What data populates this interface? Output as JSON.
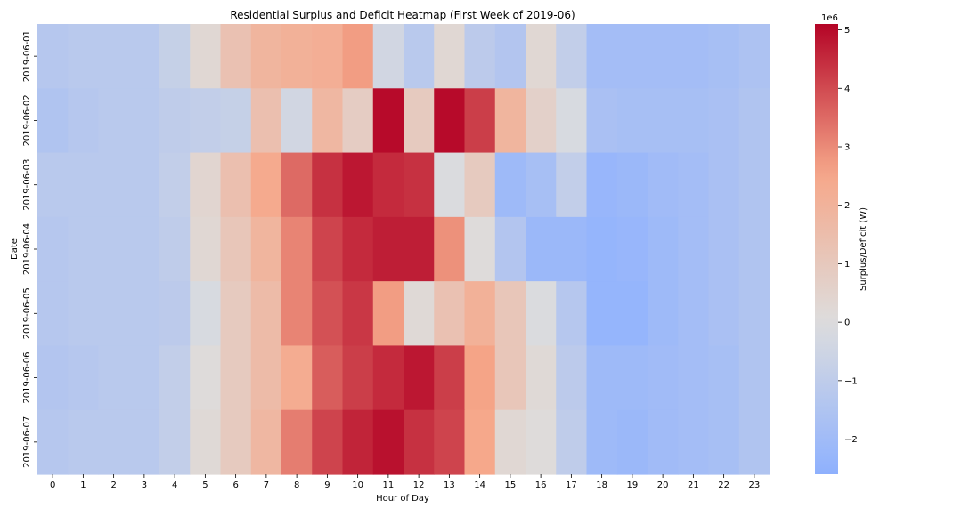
{
  "chart_data": {
    "type": "heatmap",
    "title": "Residential Surplus and Deficit Heatmap (First Week of 2019-06)",
    "xlabel": "Hour of Day",
    "ylabel": "Date",
    "x": [
      "0",
      "1",
      "2",
      "3",
      "4",
      "5",
      "6",
      "7",
      "8",
      "9",
      "10",
      "11",
      "12",
      "13",
      "14",
      "15",
      "16",
      "17",
      "18",
      "19",
      "20",
      "21",
      "22",
      "23"
    ],
    "y": [
      "2019-06-01",
      "2019-06-02",
      "2019-06-03",
      "2019-06-04",
      "2019-06-05",
      "2019-06-06",
      "2019-06-07"
    ],
    "values": [
      [
        -1.3,
        -1.2,
        -1.2,
        -1.2,
        -0.8,
        0.3,
        1.3,
        1.9,
        2.1,
        2.2,
        2.7,
        -0.4,
        -1.2,
        0.3,
        -1.1,
        -1.4,
        0.3,
        -0.9,
        -1.9,
        -1.9,
        -1.9,
        -1.9,
        -1.8,
        -1.6
      ],
      [
        -1.5,
        -1.3,
        -1.2,
        -1.2,
        -1.0,
        -0.9,
        -0.8,
        1.4,
        -0.4,
        1.8,
        0.8,
        5.0,
        0.9,
        5.0,
        4.2,
        1.9,
        0.6,
        -0.2,
        -1.7,
        -1.8,
        -1.8,
        -1.8,
        -1.7,
        -1.5
      ],
      [
        -1.2,
        -1.2,
        -1.2,
        -1.2,
        -0.9,
        0.4,
        1.4,
        2.4,
        3.5,
        4.4,
        4.8,
        4.5,
        4.4,
        -0.1,
        0.9,
        -2.1,
        -1.8,
        -0.9,
        -2.3,
        -2.2,
        -2.0,
        -1.9,
        -1.7,
        -1.5
      ],
      [
        -1.3,
        -1.2,
        -1.2,
        -1.2,
        -1.0,
        0.3,
        1.1,
        1.9,
        3.1,
        4.1,
        4.5,
        4.7,
        4.7,
        2.9,
        0.1,
        -1.4,
        -2.2,
        -2.2,
        -2.4,
        -2.3,
        -2.1,
        -1.9,
        -1.7,
        -1.5
      ],
      [
        -1.3,
        -1.2,
        -1.2,
        -1.2,
        -1.1,
        -0.2,
        0.9,
        1.6,
        3.1,
        3.9,
        4.3,
        2.7,
        0.2,
        1.3,
        2.1,
        1.1,
        -0.1,
        -1.3,
        -2.4,
        -2.4,
        -2.1,
        -1.9,
        -1.7,
        -1.5
      ],
      [
        -1.4,
        -1.3,
        -1.2,
        -1.2,
        -0.9,
        0.1,
        0.9,
        1.6,
        2.3,
        3.7,
        4.2,
        4.5,
        4.8,
        4.2,
        2.6,
        1.1,
        0.2,
        -1.1,
        -2.1,
        -2.1,
        -2.0,
        -1.9,
        -1.8,
        -1.5
      ],
      [
        -1.3,
        -1.2,
        -1.2,
        -1.2,
        -0.9,
        0.2,
        0.9,
        1.8,
        3.2,
        4.1,
        4.6,
        4.9,
        4.4,
        4.1,
        2.5,
        0.3,
        0.1,
        -1.0,
        -2.1,
        -2.2,
        -2.0,
        -1.9,
        -1.8,
        -1.5
      ]
    ],
    "colorbar": {
      "label": "Surplus/Deficit (W)",
      "offset_label": "1e6",
      "ticks": [
        "−2",
        "−1",
        "0",
        "1",
        "2",
        "3",
        "4",
        "5"
      ],
      "vmin": -2.6,
      "vmax": 5.1,
      "colormap": "coolwarm"
    }
  }
}
